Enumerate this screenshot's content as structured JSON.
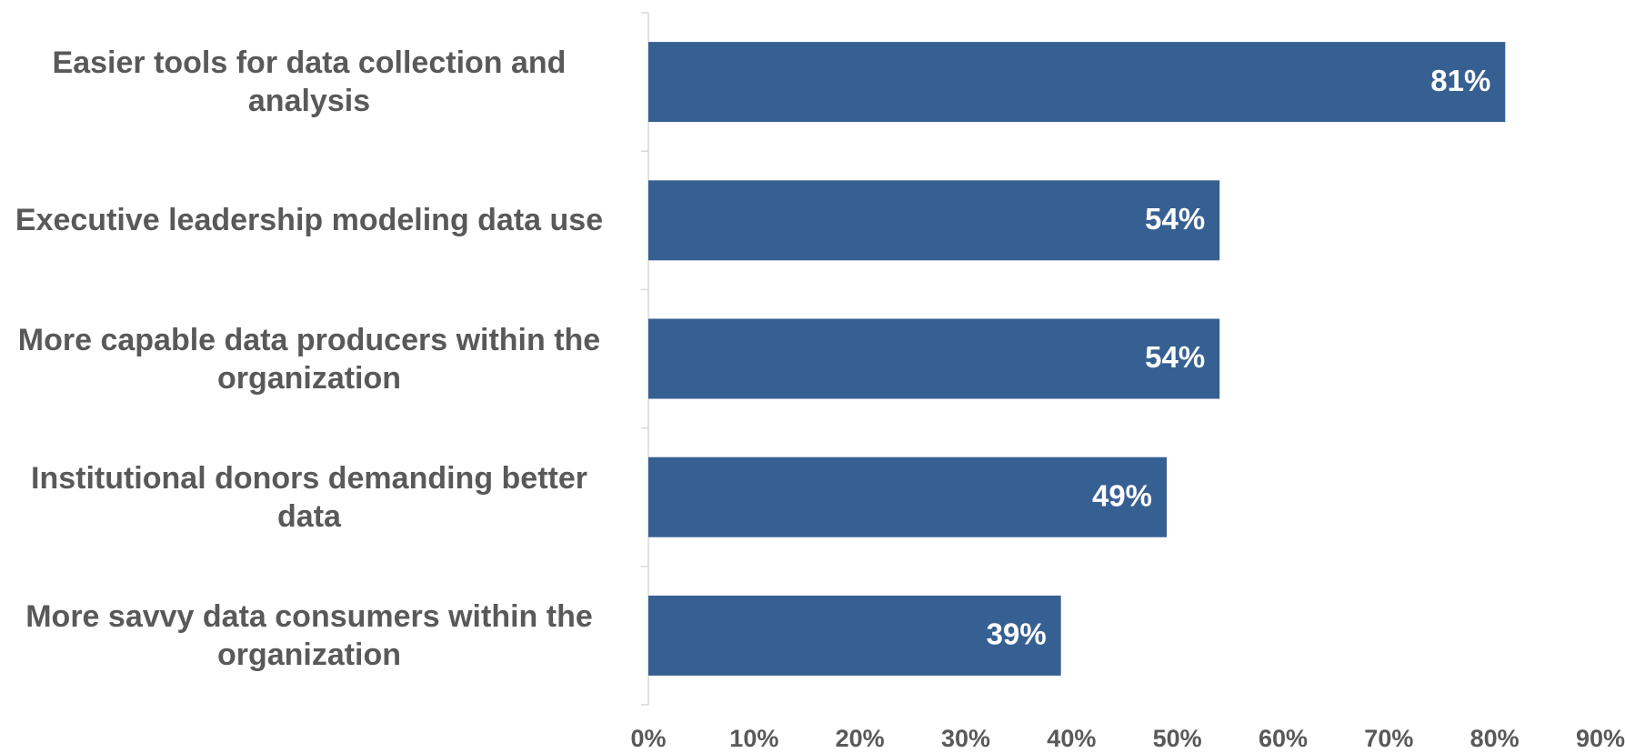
{
  "chart_data": {
    "type": "barh",
    "categories": [
      "Easier tools for data collection and analysis",
      "Executive leadership modeling data use",
      "More capable data producers within the organization",
      "Institutional donors demanding better data",
      "More savvy data consumers within the organization"
    ],
    "values": [
      81,
      54,
      54,
      49,
      39
    ],
    "value_labels": [
      "81%",
      "54%",
      "54%",
      "49%",
      "39%"
    ],
    "color": "#366092",
    "xlim": [
      0,
      90
    ],
    "xticks": [
      {
        "value": 0,
        "label": "0%"
      },
      {
        "value": 10,
        "label": "10%"
      },
      {
        "value": 20,
        "label": "20%"
      },
      {
        "value": 30,
        "label": "30%"
      },
      {
        "value": 40,
        "label": "40%"
      },
      {
        "value": 50,
        "label": "50%"
      },
      {
        "value": 60,
        "label": "60%"
      },
      {
        "value": 70,
        "label": "70%"
      },
      {
        "value": 80,
        "label": "80%"
      },
      {
        "value": 90,
        "label": "90%"
      }
    ],
    "grid": false
  }
}
